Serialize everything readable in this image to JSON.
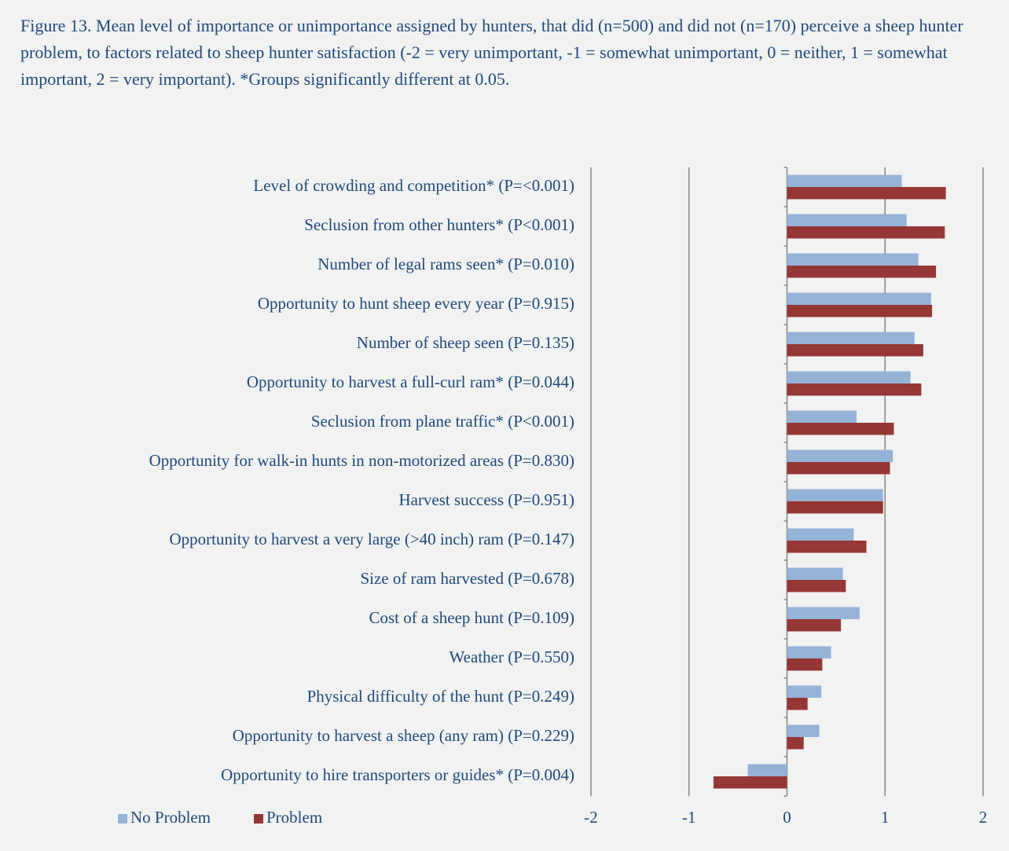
{
  "chart_data": {
    "type": "bar",
    "orientation": "horizontal",
    "title": "Figure 13. Mean level of importance or unimportance assigned by hunters, that did (n=500) and did not (n=170) perceive a sheep hunter problem, to factors related to sheep hunter satisfaction (-2 = very unimportant, -1 = somewhat unimportant, 0 = neither, 1 = somewhat important, 2 = very important). *Groups significantly different at 0.05.",
    "categories": [
      "Level of crowding and competition* (P=<0.001)",
      "Seclusion from other hunters* (P<0.001)",
      "Number of legal rams seen* (P=0.010)",
      "Opportunity to hunt sheep every year (P=0.915)",
      "Number of sheep seen (P=0.135)",
      "Opportunity to harvest a full-curl ram* (P=0.044)",
      "Seclusion from plane traffic* (P<0.001)",
      "Opportunity for walk-in hunts in non-motorized areas (P=0.830)",
      "Harvest success (P=0.951)",
      "Opportunity to harvest a very large (>40 inch) ram (P=0.147)",
      "Size of ram harvested (P=0.678)",
      "Cost of a sheep hunt (P=0.109)",
      "Weather (P=0.550)",
      "Physical difficulty of the hunt (P=0.249)",
      "Opportunity to harvest a sheep (any ram) (P=0.229)",
      "Opportunity to hire transporters or guides* (P=0.004)"
    ],
    "series": [
      {
        "name": "No Problem",
        "color": "#95b3d7",
        "values": [
          1.17,
          1.22,
          1.34,
          1.47,
          1.3,
          1.26,
          0.71,
          1.08,
          0.98,
          0.68,
          0.57,
          0.74,
          0.45,
          0.35,
          0.33,
          -0.4
        ]
      },
      {
        "name": "Problem",
        "color": "#953735",
        "values": [
          1.62,
          1.61,
          1.52,
          1.48,
          1.39,
          1.37,
          1.09,
          1.05,
          0.98,
          0.81,
          0.6,
          0.55,
          0.36,
          0.21,
          0.17,
          -0.75
        ]
      }
    ],
    "xlim": [
      -2,
      2
    ],
    "xticks": [
      -2,
      -1,
      0,
      1,
      2
    ],
    "grid": true,
    "legend": "bottom-left"
  }
}
